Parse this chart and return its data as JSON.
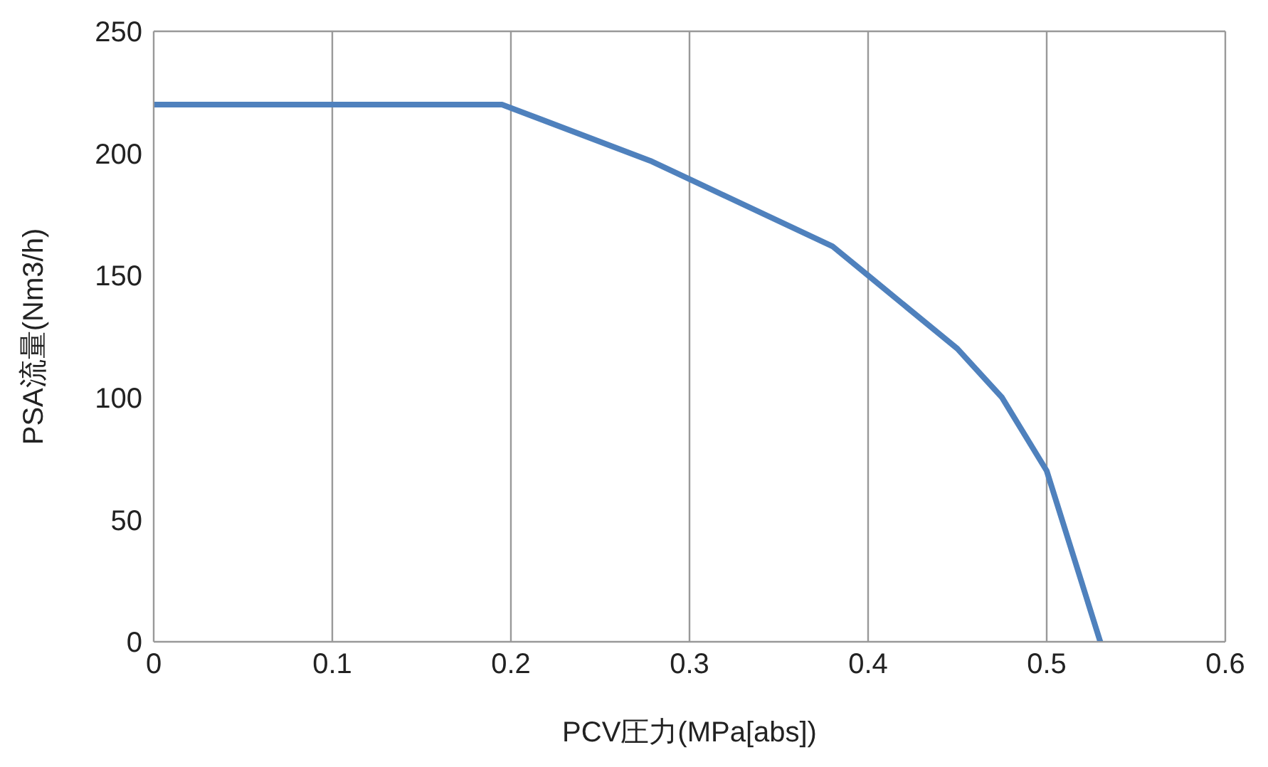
{
  "chart_data": {
    "type": "line",
    "xlabel": "PCV圧力(MPa[abs])",
    "ylabel": "PSA流量(Nm3/h)",
    "x": [
      0,
      0.195,
      0.278,
      0.38,
      0.4,
      0.45,
      0.475,
      0.5,
      0.53
    ],
    "series": [
      {
        "color": "#4f81bd",
        "values": [
          220,
          220,
          197,
          162,
          150,
          120,
          100,
          70,
          0
        ]
      }
    ],
    "xlim": [
      0,
      0.6
    ],
    "xticks": [
      0,
      0.1,
      0.2,
      0.3,
      0.4,
      0.5,
      0.6
    ],
    "ylim": [
      0,
      250
    ],
    "yticks": [
      0,
      50,
      100,
      150,
      200,
      250
    ],
    "grid": true,
    "legend": false,
    "marker": "none",
    "line_style": "solid"
  }
}
